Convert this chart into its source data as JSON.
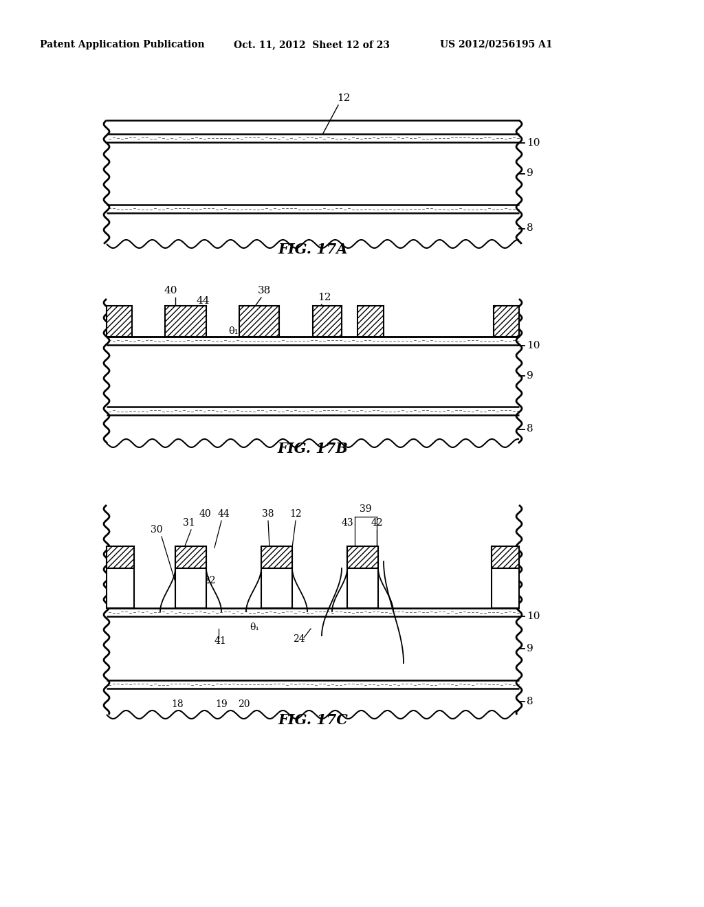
{
  "header_left": "Patent Application Publication",
  "header_mid": "Oct. 11, 2012  Sheet 12 of 23",
  "header_right": "US 2012/0256195 A1",
  "fig_labels": [
    "FIG. 17A",
    "FIG. 17B",
    "FIG. 17C"
  ],
  "bg_color": "#ffffff"
}
